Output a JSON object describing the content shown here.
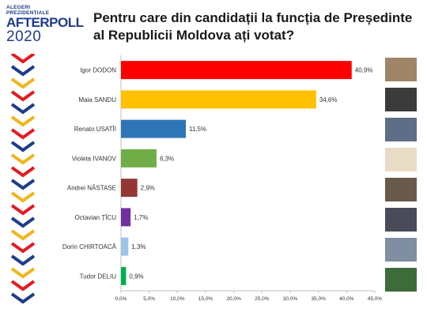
{
  "brand": {
    "line1": "ALEGERI",
    "line2": "PREZIDENȚIALE",
    "line3": "AFTERPOLL",
    "line4": "2020"
  },
  "title": "Pentru care din candidații la funcția de Președinte al Republicii Moldova ați votat?",
  "chart_data": {
    "type": "bar",
    "orientation": "horizontal",
    "title": "Pentru care din candidații la funcția de Președinte al Republicii Moldova ați votat?",
    "categories": [
      "Igor DODON",
      "Maia SANDU",
      "Renato USATÎI",
      "Violeta IVANOV",
      "Andrei NĂSTASE",
      "Octavian ȚÎCU",
      "Dorin CHIRTOACĂ",
      "Tudor DELIU"
    ],
    "values": [
      40.9,
      34.6,
      11.5,
      6.3,
      2.9,
      1.7,
      1.3,
      0.9
    ],
    "value_labels": [
      "40,9%",
      "34,6%",
      "11,5%",
      "6,3%",
      "2,9%",
      "1,7%",
      "1,3%",
      "0,9%"
    ],
    "colors": [
      "#ff0000",
      "#ffc000",
      "#2e75b6",
      "#70ad47",
      "#943634",
      "#7030a0",
      "#9dc3e6",
      "#00b050"
    ],
    "xlim": [
      0,
      45
    ],
    "xticks": [
      "0,0%",
      "5,0%",
      "10,0%",
      "15,0%",
      "20,0%",
      "25,0%",
      "30,0%",
      "35,0%",
      "40,0%",
      "45,0%"
    ],
    "grid": false
  },
  "colors": {
    "brand": "#1f3c8c",
    "stripe": [
      "#e31b23",
      "#1f3c8c",
      "#f2b51d"
    ]
  }
}
